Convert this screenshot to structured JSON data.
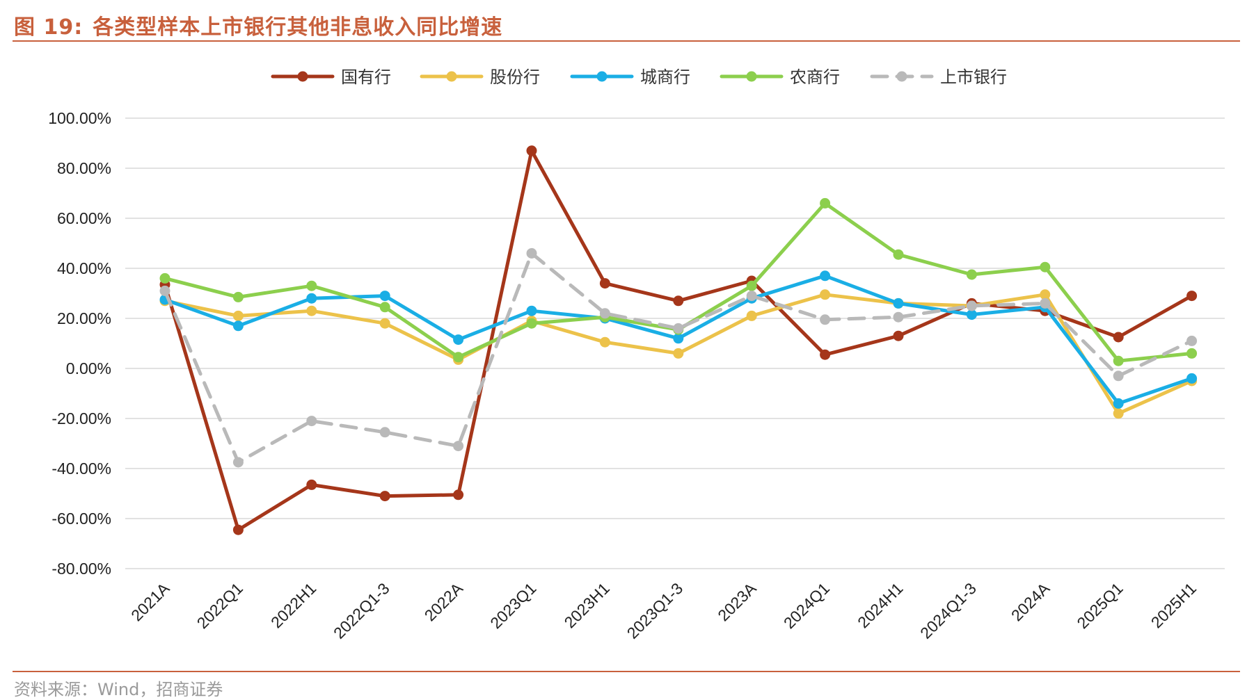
{
  "figure": {
    "label": "图",
    "number": "19:",
    "title": "各类型样本上市银行其他非息收入同比增速",
    "source": "资料来源：Wind，招商证券"
  },
  "chart_data": {
    "type": "line",
    "categories": [
      "2021A",
      "2022Q1",
      "2022H1",
      "2022Q1-3",
      "2022A",
      "2023Q1",
      "2023H1",
      "2023Q1-3",
      "2023A",
      "2024Q1",
      "2024H1",
      "2024Q1-3",
      "2024A",
      "2025Q1",
      "2025H1"
    ],
    "y_ticks": [
      "100.00%",
      "80.00%",
      "60.00%",
      "40.00%",
      "20.00%",
      "0.00%",
      "-20.00%",
      "-40.00%",
      "-60.00%",
      "-80.00%"
    ],
    "ylim": [
      -80,
      100
    ],
    "grid": true,
    "legend_position": "top-center",
    "series": [
      {
        "name": "国有行",
        "color": "#a5361a",
        "dashed": false,
        "values": [
          33.5,
          -64.5,
          -46.5,
          -51,
          -50.5,
          87,
          34,
          27,
          35,
          5.5,
          13,
          26,
          23,
          12.5,
          29
        ]
      },
      {
        "name": "股份行",
        "color": "#ecc24a",
        "dashed": false,
        "values": [
          27,
          21,
          23,
          18,
          3.5,
          19,
          10.5,
          6,
          21,
          29.5,
          26,
          25,
          29.5,
          -18,
          -5
        ]
      },
      {
        "name": "城商行",
        "color": "#1aaee5",
        "dashed": false,
        "values": [
          27.5,
          17,
          28,
          29,
          11.5,
          23,
          20,
          12,
          28,
          37,
          26,
          21.5,
          24.5,
          -14,
          -4
        ]
      },
      {
        "name": "农商行",
        "color": "#8ccf4d",
        "dashed": false,
        "values": [
          36,
          28.5,
          33,
          24.5,
          4.5,
          18,
          20.5,
          15.5,
          33,
          66,
          45.5,
          37.5,
          40.5,
          3,
          6
        ]
      },
      {
        "name": "上市银行",
        "color": "#b9b9b9",
        "dashed": true,
        "values": [
          31,
          -37.5,
          -21,
          -25.5,
          -31,
          46,
          22,
          16,
          29,
          19.5,
          20.5,
          25,
          26,
          -3,
          11
        ]
      }
    ]
  }
}
